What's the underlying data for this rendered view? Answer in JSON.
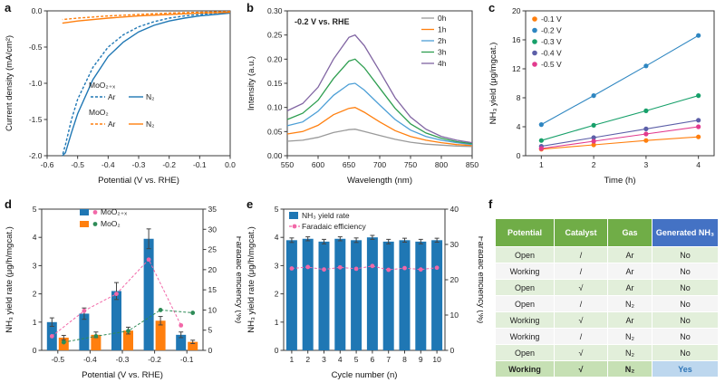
{
  "figure": {
    "panel_labels": [
      "a",
      "b",
      "c",
      "d",
      "e",
      "f"
    ]
  },
  "chart_data": [
    {
      "panel": "a",
      "type": "line",
      "xlabel": "Potential (V vs. RHE)",
      "ylabel": "Current density (mA/cm²)",
      "xlim": [
        -0.6,
        0.0
      ],
      "ylim": [
        -2.0,
        0.0
      ],
      "xticks": [
        -0.6,
        -0.5,
        -0.4,
        -0.3,
        -0.2,
        -0.1,
        0.0
      ],
      "xtick_labels": [
        "-0.6",
        "-0.5",
        "-0.4",
        "-0.3",
        "-0.2",
        "-0.1",
        "0.0"
      ],
      "yticks": [
        0.0,
        -0.5,
        -1.0,
        -1.5,
        -2.0
      ],
      "ytick_labels": [
        "0.0",
        "-0.5",
        "-1.0",
        "-1.5",
        "-2.0"
      ],
      "series": [
        {
          "name": "MoO₂₊ₓ Ar",
          "color": "#1f77b4",
          "dash": "3 2",
          "x": [
            0,
            -0.05,
            -0.1,
            -0.15,
            -0.2,
            -0.25,
            -0.3,
            -0.35,
            -0.4,
            -0.45,
            -0.5,
            -0.52,
            -0.54,
            -0.55
          ],
          "y": [
            -0.02,
            -0.03,
            -0.05,
            -0.07,
            -0.1,
            -0.15,
            -0.22,
            -0.33,
            -0.5,
            -0.78,
            -1.22,
            -1.5,
            -1.85,
            -2.0
          ]
        },
        {
          "name": "MoO₂₊ₓ N₂",
          "color": "#1f77b4",
          "dash": null,
          "x": [
            0,
            -0.05,
            -0.1,
            -0.15,
            -0.2,
            -0.25,
            -0.3,
            -0.35,
            -0.4,
            -0.45,
            -0.5,
            -0.52,
            -0.54,
            -0.55
          ],
          "y": [
            -0.03,
            -0.05,
            -0.07,
            -0.1,
            -0.14,
            -0.2,
            -0.29,
            -0.43,
            -0.63,
            -0.95,
            -1.42,
            -1.68,
            -1.96,
            -2.0
          ]
        },
        {
          "name": "MoO₂ Ar",
          "color": "#ff7f0e",
          "dash": "3 2",
          "x": [
            0,
            -0.1,
            -0.2,
            -0.3,
            -0.4,
            -0.5,
            -0.55
          ],
          "y": [
            -0.01,
            -0.02,
            -0.03,
            -0.05,
            -0.07,
            -0.1,
            -0.12
          ]
        },
        {
          "name": "MoO₂ N₂",
          "color": "#ff7f0e",
          "dash": null,
          "x": [
            0,
            -0.1,
            -0.2,
            -0.3,
            -0.4,
            -0.5,
            -0.55
          ],
          "y": [
            -0.02,
            -0.03,
            -0.05,
            -0.07,
            -0.1,
            -0.14,
            -0.17
          ]
        }
      ],
      "legend": [
        {
          "title": "MoO₂₊ₓ",
          "dashed_label": "Ar",
          "solid_label": "N₂",
          "color": "#1f77b4"
        },
        {
          "title": "MoO₂",
          "dashed_label": "Ar",
          "solid_label": "N₂",
          "color": "#ff7f0e"
        }
      ]
    },
    {
      "panel": "b",
      "type": "line",
      "annotation": "-0.2 V vs. RHE",
      "xlabel": "Wavelength (nm)",
      "ylabel": "Intensity (a.u.)",
      "xlim": [
        550,
        850
      ],
      "ylim": [
        0,
        0.3
      ],
      "xticks": [
        550,
        600,
        650,
        700,
        750,
        800,
        850
      ],
      "xtick_labels": [
        "550",
        "600",
        "650",
        "700",
        "750",
        "800",
        "850"
      ],
      "yticks": [
        0.0,
        0.05,
        0.1,
        0.15,
        0.2,
        0.25,
        0.3
      ],
      "ytick_labels": [
        "0.00",
        "0.05",
        "0.10",
        "0.15",
        "0.20",
        "0.25",
        "0.30"
      ],
      "x": [
        550,
        575,
        600,
        625,
        650,
        660,
        675,
        700,
        725,
        750,
        775,
        800,
        825,
        850
      ],
      "series": [
        {
          "name": "0h",
          "color": "#9a9a9a",
          "y": [
            0.03,
            0.032,
            0.038,
            0.048,
            0.054,
            0.055,
            0.05,
            0.042,
            0.034,
            0.028,
            0.024,
            0.022,
            0.02,
            0.019
          ]
        },
        {
          "name": "1h",
          "color": "#ff7f0e",
          "y": [
            0.045,
            0.05,
            0.063,
            0.085,
            0.098,
            0.1,
            0.09,
            0.07,
            0.052,
            0.04,
            0.032,
            0.027,
            0.023,
            0.021
          ]
        },
        {
          "name": "2h",
          "color": "#4d9fd6",
          "y": [
            0.062,
            0.07,
            0.092,
            0.125,
            0.148,
            0.15,
            0.136,
            0.105,
            0.075,
            0.053,
            0.04,
            0.032,
            0.027,
            0.023
          ]
        },
        {
          "name": "3h",
          "color": "#2e9e50",
          "y": [
            0.075,
            0.088,
            0.115,
            0.16,
            0.196,
            0.2,
            0.182,
            0.14,
            0.098,
            0.066,
            0.047,
            0.036,
            0.029,
            0.025
          ]
        },
        {
          "name": "4h",
          "color": "#8064a2",
          "y": [
            0.093,
            0.108,
            0.142,
            0.2,
            0.245,
            0.25,
            0.228,
            0.175,
            0.12,
            0.08,
            0.055,
            0.04,
            0.032,
            0.027
          ]
        }
      ]
    },
    {
      "panel": "c",
      "type": "scatter-line",
      "xlabel": "Time (h)",
      "ylabel": "NH₃ yield (μg/mgcat.)",
      "xlim": [
        0.7,
        4.3
      ],
      "ylim": [
        0,
        20
      ],
      "xticks": [
        1,
        2,
        3,
        4
      ],
      "xtick_labels": [
        "1",
        "2",
        "3",
        "4"
      ],
      "yticks": [
        0,
        4,
        8,
        12,
        16,
        20
      ],
      "ytick_labels": [
        "0",
        "4",
        "8",
        "12",
        "16",
        "20"
      ],
      "x": [
        1,
        2,
        3,
        4
      ],
      "series": [
        {
          "name": "-0.1 V",
          "color": "#ff7f0e",
          "y": [
            0.9,
            1.5,
            2.1,
            2.6
          ]
        },
        {
          "name": "-0.2 V",
          "color": "#2e86c1",
          "y": [
            4.3,
            8.3,
            12.4,
            16.6
          ]
        },
        {
          "name": "-0.3 V",
          "color": "#17a06a",
          "y": [
            2.1,
            4.2,
            6.2,
            8.3
          ]
        },
        {
          "name": "-0.4 V",
          "color": "#5c5fa8",
          "y": [
            1.3,
            2.5,
            3.7,
            4.9
          ]
        },
        {
          "name": "-0.5 V",
          "color": "#e23a8e",
          "y": [
            1.0,
            2.0,
            3.0,
            4.0
          ]
        }
      ]
    },
    {
      "panel": "d",
      "type": "bar-dual",
      "xlabel": "Potential (V vs. RHE)",
      "ylabel_left": "NH₃ yield rate (μg/h/mgcat.)",
      "ylabel_right": "Faradaic efficiency (%)",
      "categories": [
        "-0.5",
        "-0.4",
        "-0.3",
        "-0.2",
        "-0.1"
      ],
      "ylim_left": [
        0,
        5
      ],
      "yticks_left": [
        0,
        1,
        2,
        3,
        4,
        5
      ],
      "ytick_left_labels": [
        "0",
        "1",
        "2",
        "3",
        "4",
        "5"
      ],
      "ylim_right": [
        0,
        35
      ],
      "yticks_right": [
        0,
        5,
        10,
        15,
        20,
        25,
        30,
        35
      ],
      "ytick_right_labels": [
        "0",
        "5",
        "10",
        "15",
        "20",
        "25",
        "30",
        "35"
      ],
      "bars": [
        {
          "name": "MoO₂₊ₓ",
          "color": "#1f77b4",
          "values": [
            1.0,
            1.3,
            2.1,
            3.95,
            0.55
          ],
          "errors": [
            0.15,
            0.2,
            0.3,
            0.35,
            0.1
          ]
        },
        {
          "name": "MoO₂",
          "color": "#ff7f0e",
          "values": [
            0.45,
            0.55,
            0.7,
            1.05,
            0.3
          ],
          "errors": [
            0.08,
            0.1,
            0.12,
            0.15,
            0.06
          ]
        }
      ],
      "points": [
        {
          "name": "MoO₂₊ₓ Faradaic efficiency",
          "color": "#f268a8",
          "values": [
            3.5,
            9.8,
            14.0,
            22.5,
            6.2
          ]
        },
        {
          "name": "MoO₂ Faradaic efficiency",
          "color": "#2e8b57",
          "values": [
            2.0,
            3.5,
            4.8,
            10.0,
            9.3
          ]
        }
      ]
    },
    {
      "panel": "e",
      "type": "bar-dual",
      "xlabel": "Cycle number (n)",
      "ylabel_left": "NH₃ yield rate (μg/h/mgcat.)",
      "ylabel_right": "Faradaic efficiency (%)",
      "categories": [
        "1",
        "2",
        "3",
        "4",
        "5",
        "6",
        "7",
        "8",
        "9",
        "10"
      ],
      "ylim_left": [
        0,
        5
      ],
      "yticks_left": [
        0,
        1,
        2,
        3,
        4,
        5
      ],
      "ytick_left_labels": [
        "0",
        "1",
        "2",
        "3",
        "4",
        "5"
      ],
      "ylim_right": [
        0,
        40
      ],
      "yticks_right": [
        0,
        10,
        20,
        30,
        40
      ],
      "ytick_right_labels": [
        "0",
        "10",
        "20",
        "30",
        "40"
      ],
      "bars": [
        {
          "name": "NH₃ yield rate",
          "color": "#1f77b4",
          "values": [
            3.9,
            3.95,
            3.85,
            3.95,
            3.9,
            4.0,
            3.85,
            3.9,
            3.85,
            3.9
          ],
          "errors": [
            0.08,
            0.07,
            0.08,
            0.07,
            0.08,
            0.07,
            0.08,
            0.07,
            0.08,
            0.07
          ]
        }
      ],
      "points": [
        {
          "name": "Faradaic efficiency",
          "color": "#f268a8",
          "values": [
            23.2,
            23.6,
            22.9,
            23.5,
            23.1,
            23.9,
            22.8,
            23.3,
            22.9,
            23.4
          ]
        }
      ]
    },
    {
      "panel": "f",
      "type": "table",
      "headers": [
        {
          "label": "Potential",
          "bg": "#70ad47"
        },
        {
          "label": "Catalyst",
          "bg": "#70ad47"
        },
        {
          "label": "Gas",
          "bg": "#70ad47"
        },
        {
          "label": "Generated NH₃",
          "bg": "#4472c4"
        }
      ],
      "rows": [
        [
          "Open",
          "/",
          "Ar",
          "No"
        ],
        [
          "Working",
          "/",
          "Ar",
          "No"
        ],
        [
          "Open",
          "√",
          "Ar",
          "No"
        ],
        [
          "Open",
          "/",
          "N₂",
          "No"
        ],
        [
          "Working",
          "√",
          "Ar",
          "No"
        ],
        [
          "Working",
          "/",
          "N₂",
          "No"
        ],
        [
          "Open",
          "√",
          "N₂",
          "No"
        ],
        [
          "Working",
          "√",
          "N₂",
          "Yes"
        ]
      ],
      "highlight_row": 7,
      "colors": {
        "row_even": "#e2efda",
        "row_odd": "#f5f5f5",
        "highlight_green": "#c6e0b4",
        "highlight_blue": "#bdd7ee",
        "yes_color": "#2e75b6"
      }
    }
  ]
}
